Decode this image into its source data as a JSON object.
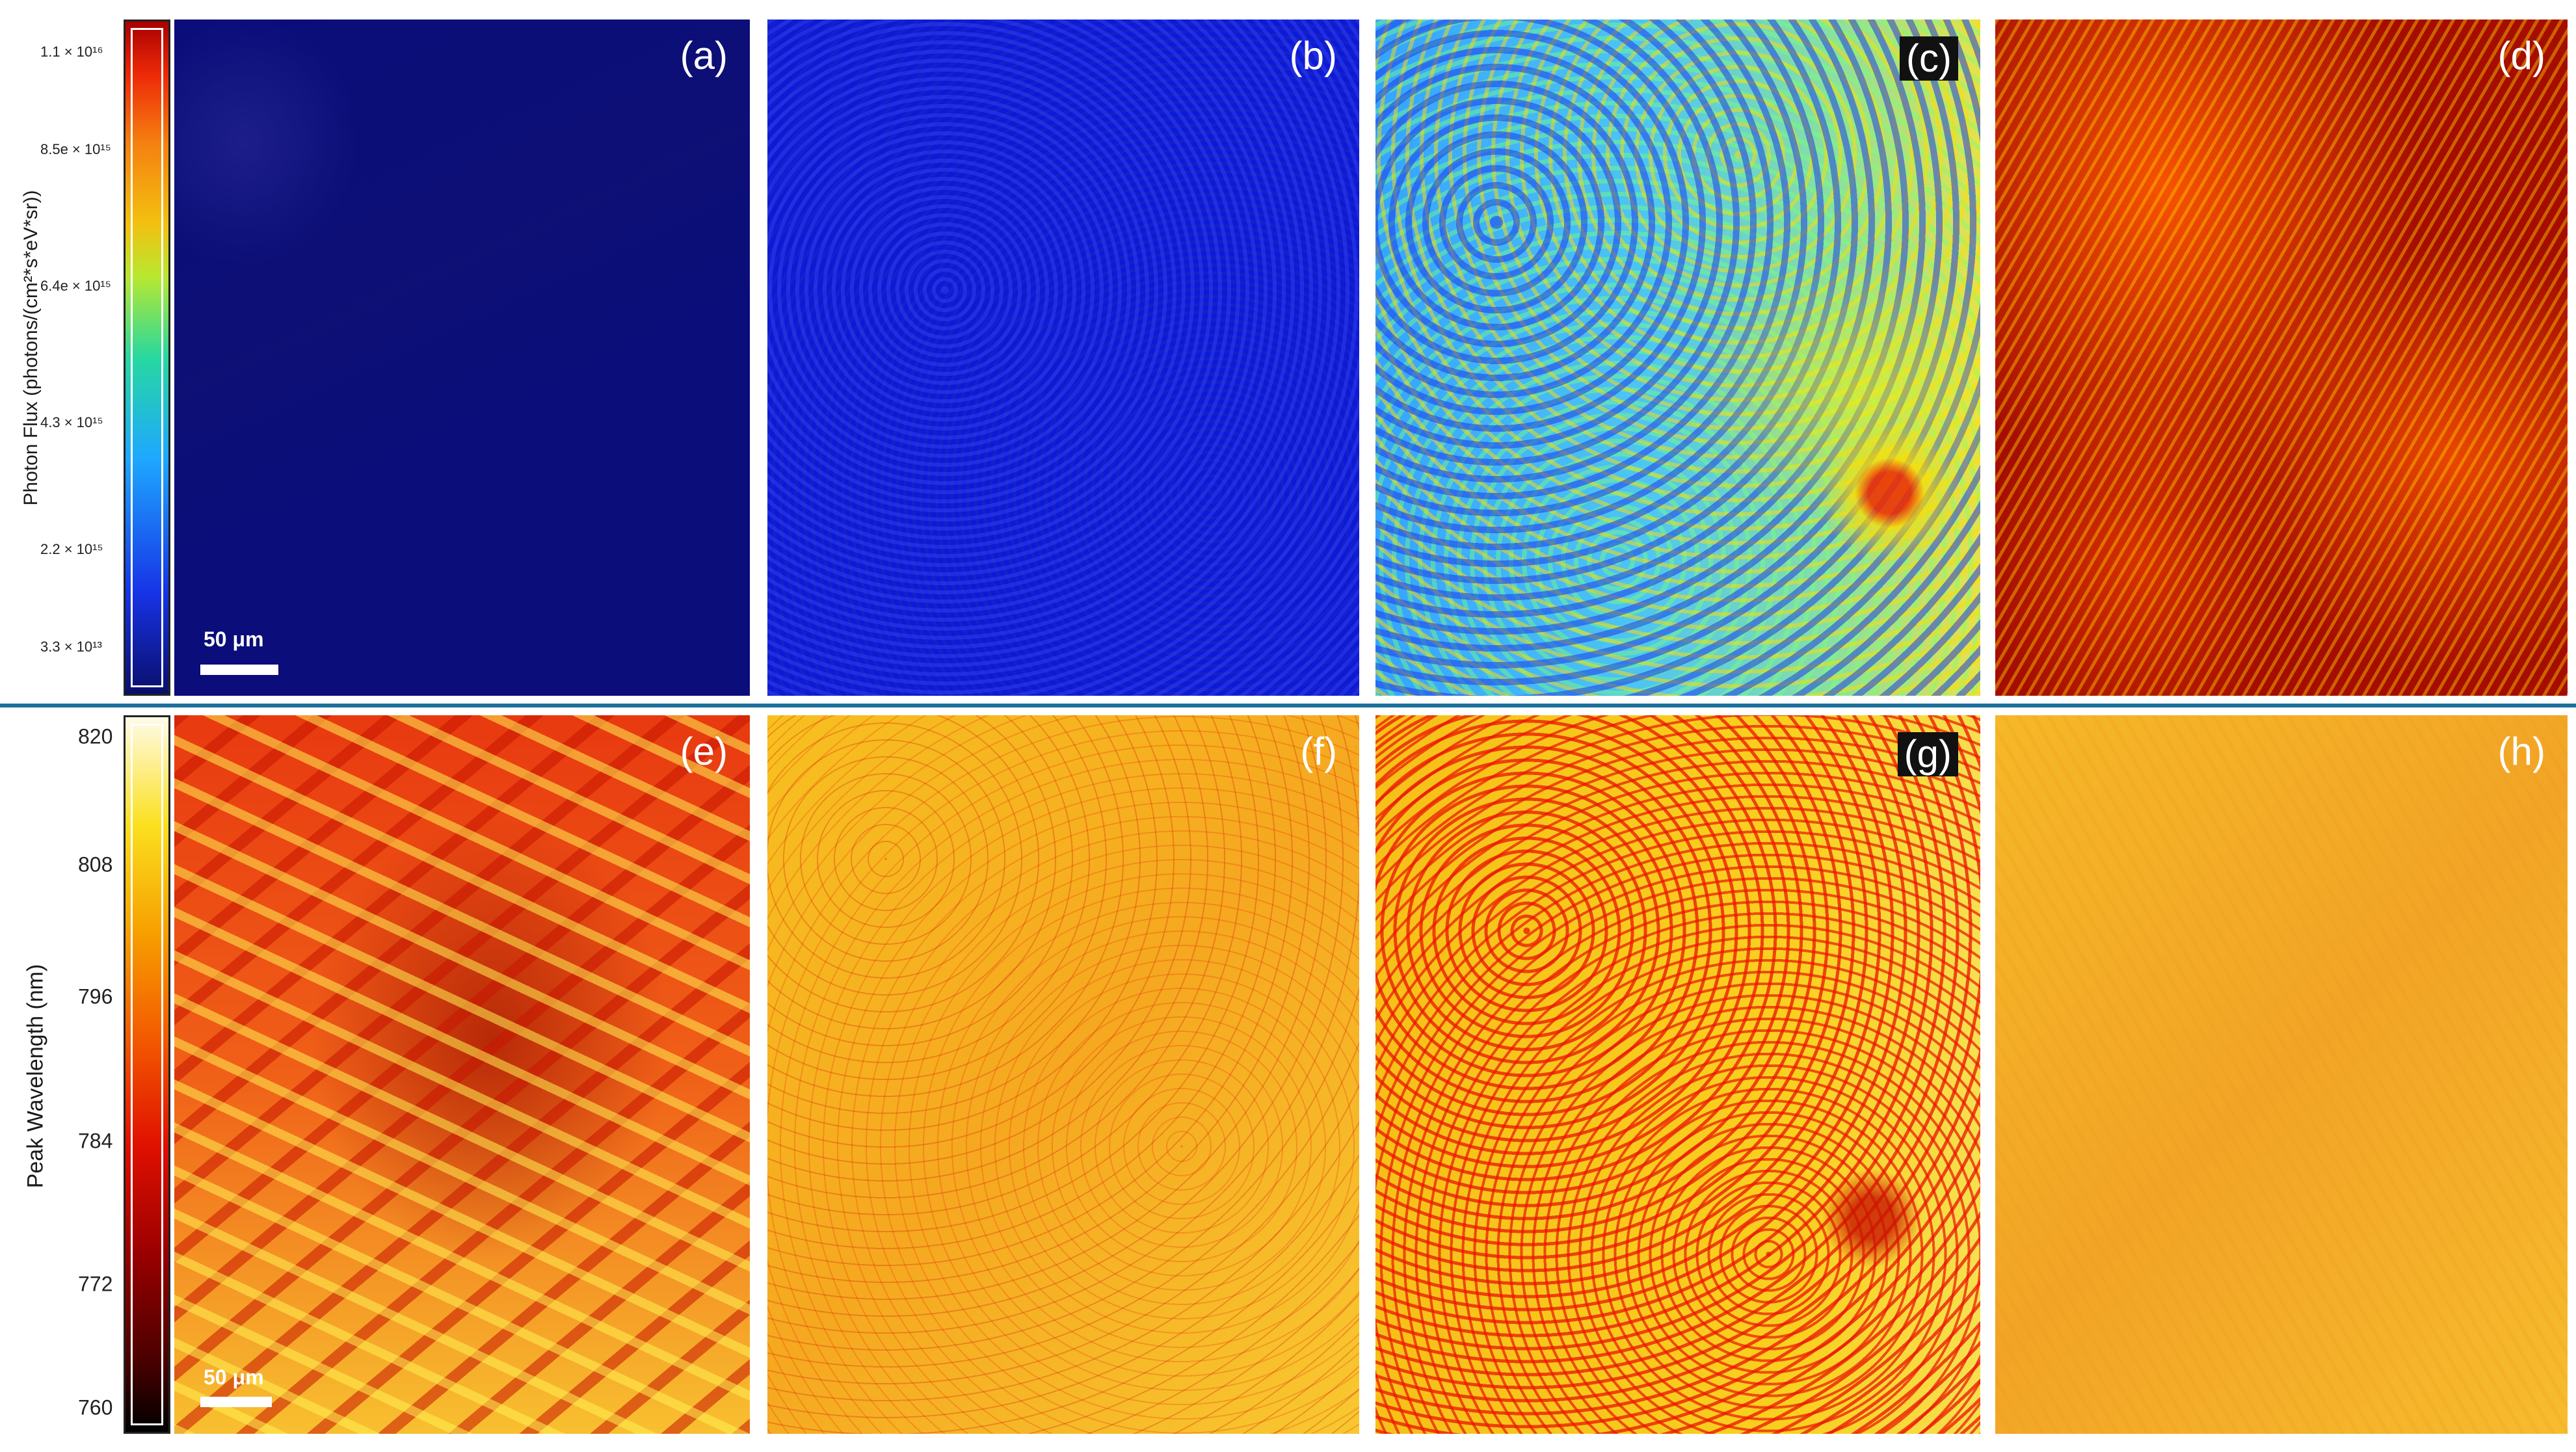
{
  "top_row": {
    "axis_title": "Photon Flux (photons/(cm²*s*eV*sr))",
    "colorbar_ticks": [
      "1.1 × 10¹⁶",
      "8.5e × 10¹⁵",
      "6.4e × 10¹⁵",
      "4.3 × 10¹⁵",
      "2.2 × 10¹⁵",
      "3.3 × 10¹³"
    ],
    "colormap": "jet",
    "panels": [
      {
        "label": "(a)",
        "dominant_color": "#0a0d7a"
      },
      {
        "label": "(b)",
        "dominant_color": "#0c1ad6"
      },
      {
        "label": "(c)",
        "dominant_color": "#4fc6f0"
      },
      {
        "label": "(d)",
        "dominant_color": "#a40d00"
      }
    ],
    "scale_bar": "50 μm"
  },
  "bottom_row": {
    "axis_title": "Peak Wavelength (nm)",
    "colorbar_ticks": [
      "820",
      "808",
      "796",
      "784",
      "772",
      "760"
    ],
    "colormap": "hot",
    "panels": [
      {
        "label": "(e)",
        "dominant_color": "#f06018"
      },
      {
        "label": "(f)",
        "dominant_color": "#f7c020"
      },
      {
        "label": "(g)",
        "dominant_color": "#f6c018"
      },
      {
        "label": "(h)",
        "dominant_color": "#f5b828"
      }
    ],
    "scale_bar": "50 μm"
  },
  "divider_color": "#1a6f9a"
}
